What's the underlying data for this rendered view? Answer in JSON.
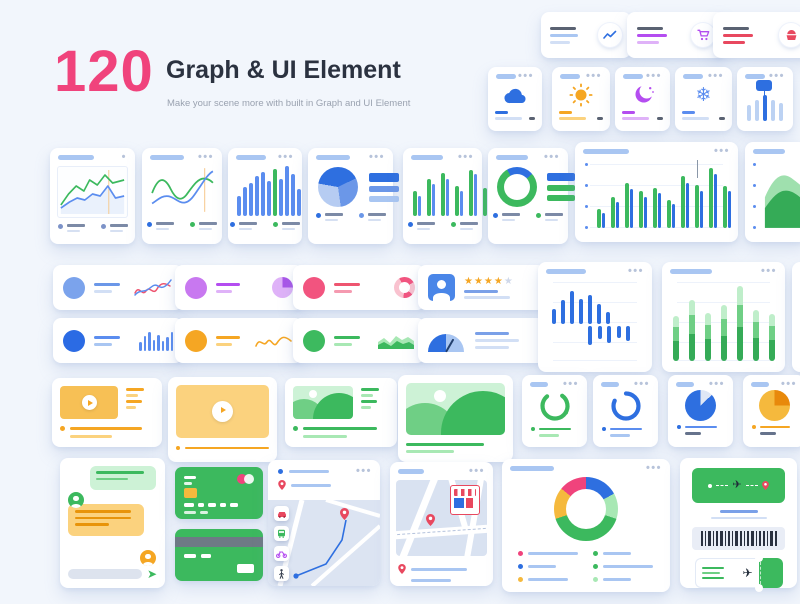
{
  "header": {
    "count": "120",
    "title": "Graph & UI Element",
    "subtitle": "Make your scene more with built in Graph and UI Element"
  },
  "misc": {
    "dots": "•••",
    "dot": "•",
    "stars_filled": "★★★★",
    "star_empty": "★",
    "plane_glyph": "✈",
    "send_glyph": "➤",
    "snowflake_glyph": "❄"
  },
  "palette": {
    "page_bg": "#f2f6fc",
    "pink": "#f0437c",
    "title_dark": "#2b3240",
    "subtitle_gray": "#9aa2b0",
    "blue": "#2e6fe0",
    "blue_soft": "#5b8def",
    "blue_med": "#6b97e8",
    "blue_light": "#a9c6f2",
    "blue_pale": "#d2dff5",
    "slate": "#5a6272",
    "dots_gray": "#b7c3da",
    "green": "#3cb95e",
    "green_dark": "#35ab57",
    "green_mid": "#6fcf85",
    "green_light": "#a8e8b4",
    "green_pale": "#cdf2d6",
    "orange": "#f5a623",
    "orange_light": "#fbd27e",
    "orange_thumb": "#f7c055",
    "red": "#e8485f",
    "pink_soft": "#f2547f",
    "pink_pale": "#f9c2cf",
    "purple": "#b44df0",
    "purple_light": "#dfb2f8",
    "map_bg": "#dce4f2",
    "input_gray": "#dde3ee",
    "barcode_dark": "#2a3140",
    "navy": "#23406e"
  },
  "charts": {
    "slider_bars": {
      "values": [
        58,
        74,
        92,
        74,
        64
      ],
      "color": "#bcd2f3",
      "highlight_index": 2,
      "highlight_color": "#2e6fe0"
    },
    "bar_chart_blue": {
      "values": [
        38,
        56,
        64,
        76,
        84,
        68,
        90,
        72,
        96,
        80,
        52
      ],
      "color": "#5b8def",
      "highlight_index": 6,
      "highlight_color": "#3cb95e"
    },
    "grouped_bars": {
      "values": [
        48,
        38,
        72,
        62,
        82,
        72,
        58,
        48,
        88,
        80,
        54,
        44
      ],
      "colors": [
        "#3cb95e",
        "#5b8def"
      ]
    },
    "big_bar": {
      "values": [
        30,
        24,
        50,
        42,
        72,
        62,
        58,
        50,
        64,
        56,
        45,
        38,
        82,
        72,
        68,
        58,
        95,
        85,
        66,
        58
      ],
      "colors": [
        "#3cb95e",
        "#2e6fe0"
      ]
    },
    "mini_bars_blue": {
      "values": [
        45,
        75,
        95,
        55,
        80,
        48,
        68,
        92
      ],
      "color": "#5b8def"
    },
    "updown_up": {
      "values": [
        40,
        62,
        88,
        66,
        76,
        52,
        32
      ],
      "color": "#2e6fe0"
    },
    "updown_down": {
      "values": [
        58,
        42,
        52,
        36,
        46
      ],
      "color": "#2e6fe0"
    },
    "stacked_green": {
      "totals": [
        58,
        78,
        62,
        72,
        96,
        66,
        60
      ],
      "ratios": [
        0.45,
        0.3,
        0.25
      ],
      "colors": [
        "#35ab57",
        "#6fcf85",
        "#bfeeca"
      ]
    },
    "pie_blue_shades": {
      "from": "-80deg",
      "stops": [
        [
          "#2e6fe0",
          40
        ],
        [
          "#6b97e8",
          70
        ],
        [
          "#b6ccf2",
          100
        ]
      ]
    },
    "donut_blue_green": {
      "from": "-30deg",
      "stops": [
        [
          "#2e6fe0",
          22
        ],
        [
          "#3cb95e",
          100
        ]
      ]
    },
    "purple_pie": {
      "from": "0deg",
      "stops": [
        [
          "#a855e8",
          25
        ],
        [
          "#dfb2f8",
          100
        ]
      ]
    },
    "pink_donut": {
      "from": "-30deg",
      "stops": [
        [
          "#f2547f",
          25
        ],
        [
          "#f9c2cf",
          45
        ],
        [
          "#f2547f",
          60
        ],
        [
          "#f9c2cf",
          100
        ]
      ]
    },
    "gauge": {
      "from": "-90deg at 50% 100%",
      "stops": [
        [
          "#2e6fe0",
          25
        ],
        [
          "#a9c6f2",
          50
        ],
        [
          "transparent",
          100
        ]
      ]
    },
    "pie_blue_small": {
      "from": "0deg",
      "stops": [
        [
          "#dfe7f5",
          13
        ],
        [
          "#2e6fe0",
          100
        ]
      ]
    },
    "pie_orange_small": {
      "from": "0deg",
      "stops": [
        [
          "#e8890b",
          25
        ],
        [
          "#f5b93d",
          100
        ]
      ]
    },
    "big_donut": {
      "from": "0deg",
      "stops": [
        [
          "#2e6fe0",
          17
        ],
        [
          "#a8e8b4",
          30
        ],
        [
          "#3cb95e",
          70
        ],
        [
          "#f5b93d",
          86
        ],
        [
          "#f0437c",
          100
        ]
      ]
    }
  },
  "ticket": {
    "barcode": {
      "widths": [
        2,
        1,
        3,
        1,
        2,
        3,
        1,
        2,
        1,
        3,
        2,
        1,
        2,
        3,
        1,
        2,
        2,
        1,
        3,
        2
      ],
      "color": "#2a3140"
    }
  }
}
